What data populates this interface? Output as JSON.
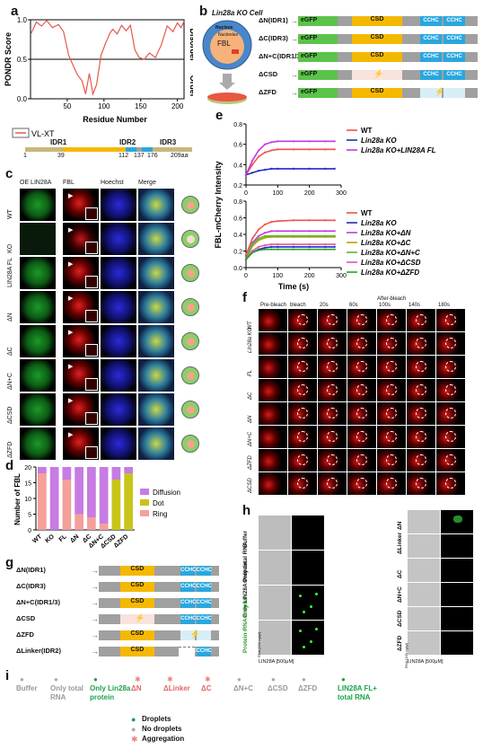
{
  "panels": {
    "a": "a",
    "b": "b",
    "c": "c",
    "d": "d",
    "e": "e",
    "f": "f",
    "g": "g",
    "h": "h",
    "i": "i"
  },
  "panel_a": {
    "ylabel": "PONDR Score",
    "xlabel": "Residue Number",
    "legend": "VL-XT",
    "right_top": "Disorder",
    "right_bottom": "Order",
    "yticks": [
      "0.0",
      "0.5",
      "1.0"
    ],
    "xticks": [
      "50",
      "100",
      "150",
      "200"
    ],
    "idr_labels": [
      "IDR1",
      "IDR2",
      "IDR3"
    ],
    "idr_ticks": [
      "1",
      "39",
      "112",
      "137",
      "176",
      "209aa"
    ]
  },
  "panel_b": {
    "cell_title": "Lin28a KO Cell",
    "nucleus": "Nucleus",
    "nucleolus": "Nucleolus",
    "fbl": "FBL",
    "constructs": [
      {
        "label": "ΔN(IDR1)",
        "tag": "eGFP",
        "csd": "CSD",
        "cchc": [
          "CCHC",
          "CCHC"
        ]
      },
      {
        "label": "ΔC(IDR3)",
        "tag": "eGFP",
        "csd": "CSD",
        "cchc": [
          "CCHC",
          "CCHC"
        ]
      },
      {
        "label": "ΔN+C(IDR1/3)",
        "tag": "eGFP",
        "csd": "CSD",
        "cchc": [
          "CCHC",
          "CCHC"
        ]
      },
      {
        "label": "ΔCSD",
        "tag": "eGFP",
        "csd": "",
        "cchc": [
          "CCHC",
          "CCHC"
        ]
      },
      {
        "label": "ΔZFD",
        "tag": "eGFP",
        "csd": "CSD",
        "cchc": [
          "",
          ""
        ]
      }
    ]
  },
  "panel_c": {
    "col_headers": [
      "OE LIN28A",
      "FBL",
      "Hoechst",
      "Merge"
    ],
    "rows": [
      "WT",
      "KO",
      "LIN28A FL",
      "ΔN",
      "ΔC",
      "ΔN+C",
      "ΔCSD",
      "ΔZFD"
    ]
  },
  "panel_d": {
    "ylabel": "Number of FBL",
    "yticks": [
      "0",
      "5",
      "10",
      "15",
      "20"
    ],
    "categories": [
      "WT",
      "KO",
      "FL",
      "ΔN",
      "ΔC",
      "ΔN+C",
      "ΔCSD",
      "ΔZFD"
    ],
    "legend": [
      "Diffusion",
      "Dot",
      "Ring"
    ]
  },
  "panel_e": {
    "ylabel": "FBL-mCherry Intensity",
    "xlabel": "Time (s)",
    "xticks": [
      "0",
      "100",
      "200",
      "300"
    ],
    "yticks_top": [
      "0.2",
      "0.4",
      "0.6",
      "0.8"
    ],
    "yticks_bottom": [
      "0.0",
      "0.2",
      "0.4",
      "0.6",
      "0.8"
    ],
    "legend_top": [
      "WT",
      "Lin28a KO",
      "Lin28a KO+LIN28A FL"
    ],
    "legend_bottom": [
      "WT",
      "Lin28a KO",
      "Lin28a KO+ΔN",
      "Lin28a KO+ΔC",
      "Lin28a KO+ΔN+C",
      "Lin28a KO+ΔCSD",
      "Lin28a KO+ΔZFD"
    ]
  },
  "panel_f": {
    "col_headers": [
      "Pre-bleach",
      "bleach",
      "20s",
      "60s",
      "100s",
      "140s",
      "180s"
    ],
    "after_bleach": "After-bleach",
    "rows": [
      "WT",
      "Lin28a KO",
      "FL",
      "ΔC",
      "ΔN",
      "ΔN+C",
      "ΔZFD",
      "ΔCSD"
    ]
  },
  "panel_g": {
    "constructs": [
      {
        "label": "ΔN(IDR1)",
        "csd": "CSD",
        "cchc": [
          "CCHC",
          "CCHC"
        ]
      },
      {
        "label": "ΔC(IDR3)",
        "csd": "CSD",
        "cchc": [
          "CCHC",
          "CCHC"
        ]
      },
      {
        "label": "ΔN+C(IDR1/3)",
        "csd": "CSD",
        "cchc": [
          "CCHC",
          "CCHC"
        ]
      },
      {
        "label": "ΔCSD",
        "csd": "",
        "cchc": [
          "CCHC",
          "CCHC"
        ]
      },
      {
        "label": "ΔZFD",
        "csd": "CSD",
        "cchc": [
          "",
          ""
        ]
      },
      {
        "label": "ΔLinker(IDR2)",
        "csd": "CSD",
        "cchc": [
          "CCHC",
          "CCHC"
        ]
      }
    ]
  },
  "panel_h": {
    "left_rows": [
      "Buffer",
      "Only total RNA",
      "Only LIN28A Protein",
      "Protein-RNA droplet"
    ],
    "right_rows": [
      "ΔN",
      "ΔLinker",
      "ΔC",
      "ΔN+C",
      "ΔCSD",
      "ΔZFD"
    ],
    "axis_left": "LIN28A [500μM]",
    "axis_right": "LIN28A [500μM]",
    "rna_left": "RNA [150 ng/μl]",
    "rna_right": "RNA [150 ng/μl]"
  },
  "panel_i": {
    "items": [
      {
        "label": "Buffer",
        "kind": "none"
      },
      {
        "label": "Only total RNA",
        "kind": "none"
      },
      {
        "label": "Only Lin28a protein",
        "kind": "droplet"
      },
      {
        "label": "ΔN",
        "kind": "agg"
      },
      {
        "label": "ΔLinker",
        "kind": "agg"
      },
      {
        "label": "ΔC",
        "kind": "agg"
      },
      {
        "label": "ΔN+C",
        "kind": "none"
      },
      {
        "label": "ΔCSD",
        "kind": "none"
      },
      {
        "label": "ΔZFD",
        "kind": "none"
      },
      {
        "label": "LIN28A FL+ total RNA",
        "kind": "droplet"
      }
    ],
    "legend": [
      "Droplets",
      "No droplets",
      "Aggregation"
    ]
  },
  "colors": {
    "egfp": "#5cc34a",
    "csd": "#f5b800",
    "cchc": "#2aa7df",
    "linker": "#a0a0a0",
    "diffusion": "#c77be3",
    "dot": "#c9c418",
    "ring": "#f4a09b",
    "red_line": "#e8574f"
  },
  "chart_data": [
    {
      "type": "line",
      "title": "",
      "xlabel": "Residue Number",
      "ylabel": "PONDR Score",
      "xlim": [
        0,
        209
      ],
      "ylim": [
        0,
        1
      ],
      "series": [
        {
          "name": "VL-XT",
          "x": [
            1,
            8,
            15,
            22,
            30,
            38,
            45,
            52,
            58,
            64,
            70,
            75,
            80,
            85,
            90,
            96,
            102,
            108,
            112,
            118,
            124,
            130,
            136,
            142,
            148,
            155,
            162,
            170,
            178,
            186,
            194,
            200,
            205,
            209
          ],
          "values": [
            0.83,
            0.97,
            0.92,
            0.99,
            0.9,
            0.94,
            0.85,
            0.55,
            0.42,
            0.3,
            0.23,
            0.06,
            0.32,
            0.06,
            0.18,
            0.55,
            0.7,
            0.83,
            0.88,
            0.82,
            0.93,
            0.86,
            0.93,
            0.62,
            0.52,
            0.5,
            0.58,
            0.52,
            0.68,
            0.92,
            0.85,
            0.96,
            0.9,
            0.98
          ]
        }
      ]
    },
    {
      "type": "bar",
      "title": "",
      "xlabel": "",
      "ylabel": "Number of FBL",
      "ylim": [
        0,
        20
      ],
      "categories": [
        "WT",
        "KO",
        "FL",
        "ΔN",
        "ΔC",
        "ΔN+C",
        "ΔCSD",
        "ΔZFD"
      ],
      "series": [
        {
          "name": "Ring",
          "values": [
            18,
            0,
            16,
            5,
            4,
            2,
            0,
            0
          ]
        },
        {
          "name": "Dot",
          "values": [
            0,
            0,
            0,
            0,
            0,
            0,
            16,
            18
          ]
        },
        {
          "name": "Diffusion",
          "values": [
            2,
            20,
            4,
            15,
            16,
            18,
            4,
            2
          ]
        }
      ]
    },
    {
      "type": "line",
      "title": "",
      "xlabel": "Time (s)",
      "ylabel": "FBL-mCherry Intensity",
      "xlim": [
        0,
        300
      ],
      "ylim": [
        0.2,
        0.8
      ],
      "series": [
        {
          "name": "WT",
          "x": [
            0,
            20,
            40,
            60,
            80,
            100,
            150,
            200,
            250,
            280
          ],
          "values": [
            0.3,
            0.4,
            0.48,
            0.52,
            0.54,
            0.55,
            0.55,
            0.55,
            0.55,
            0.55
          ]
        },
        {
          "name": "Lin28a KO",
          "x": [
            0,
            20,
            40,
            60,
            80,
            100,
            150,
            200,
            250,
            280
          ],
          "values": [
            0.3,
            0.32,
            0.34,
            0.35,
            0.36,
            0.36,
            0.36,
            0.36,
            0.36,
            0.36
          ]
        },
        {
          "name": "Lin28a KO+LIN28A FL",
          "x": [
            0,
            20,
            40,
            60,
            80,
            100,
            150,
            200,
            250,
            280
          ],
          "values": [
            0.3,
            0.44,
            0.54,
            0.6,
            0.62,
            0.63,
            0.63,
            0.63,
            0.63,
            0.63
          ]
        }
      ]
    },
    {
      "type": "line",
      "title": "",
      "xlabel": "Time (s)",
      "ylabel": "FBL-mCherry Intensity",
      "xlim": [
        0,
        300
      ],
      "ylim": [
        0,
        0.8
      ],
      "series": [
        {
          "name": "WT",
          "x": [
            0,
            20,
            40,
            60,
            80,
            100,
            150,
            200,
            250,
            280
          ],
          "values": [
            0.15,
            0.35,
            0.46,
            0.52,
            0.55,
            0.56,
            0.57,
            0.57,
            0.57,
            0.57
          ]
        },
        {
          "name": "Lin28a KO",
          "x": [
            0,
            20,
            40,
            60,
            80,
            100,
            150,
            200,
            250,
            280
          ],
          "values": [
            0.1,
            0.18,
            0.22,
            0.24,
            0.25,
            0.25,
            0.25,
            0.25,
            0.25,
            0.25
          ]
        },
        {
          "name": "Lin28a KO+ΔN",
          "x": [
            0,
            20,
            40,
            60,
            80,
            100,
            150,
            200,
            250,
            280
          ],
          "values": [
            0.1,
            0.3,
            0.38,
            0.42,
            0.44,
            0.44,
            0.44,
            0.44,
            0.44,
            0.44
          ]
        },
        {
          "name": "Lin28a KO+ΔC",
          "x": [
            0,
            20,
            40,
            60,
            80,
            100,
            150,
            200,
            250,
            280
          ],
          "values": [
            0.1,
            0.26,
            0.33,
            0.36,
            0.37,
            0.37,
            0.37,
            0.37,
            0.37,
            0.37
          ]
        },
        {
          "name": "Lin28a KO+ΔN+C",
          "x": [
            0,
            20,
            40,
            60,
            80,
            100,
            150,
            200,
            250,
            280
          ],
          "values": [
            0.1,
            0.28,
            0.35,
            0.38,
            0.38,
            0.38,
            0.38,
            0.38,
            0.38,
            0.38
          ]
        },
        {
          "name": "Lin28a KO+ΔCSD",
          "x": [
            0,
            20,
            40,
            60,
            80,
            100,
            150,
            200,
            250,
            280
          ],
          "values": [
            0.1,
            0.2,
            0.25,
            0.27,
            0.28,
            0.28,
            0.28,
            0.28,
            0.28,
            0.28
          ]
        },
        {
          "name": "Lin28a KO+ΔZFD",
          "x": [
            0,
            20,
            40,
            60,
            80,
            100,
            150,
            200,
            250,
            280
          ],
          "values": [
            0.1,
            0.18,
            0.21,
            0.22,
            0.22,
            0.22,
            0.22,
            0.22,
            0.22,
            0.22
          ]
        }
      ]
    }
  ]
}
